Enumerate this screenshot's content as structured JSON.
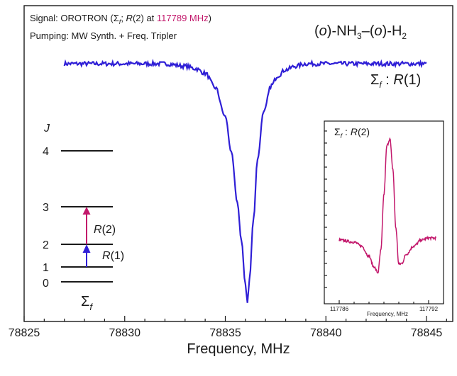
{
  "colors": {
    "main": "#2f1fd6",
    "inset": "#c2176b",
    "accent": "#c2176b",
    "arrow_r1": "#2f1fd6",
    "arrow_r2": "#c2176b"
  },
  "header": {
    "signal_prefix": "Signal: OROTRON (",
    "signal_sigma": "Σ",
    "signal_sub": "f",
    "signal_mid": "; ",
    "signal_R": "R",
    "signal_arg": "(2) at ",
    "signal_freq": "117789 MHz",
    "signal_close": ")",
    "pumping": "Pumping: MW Synth. + Freq. Tripler",
    "species_o1": "o",
    "species_nh": ")-NH",
    "species_3": "3",
    "species_dash": "–(",
    "species_o2": "o",
    "species_h": ")-H",
    "species_2": "2",
    "species_open": "(",
    "curve_label_sigma": "Σ",
    "curve_label_sub": "f",
    "curve_label_colon": " : ",
    "curve_label_R": "R",
    "curve_label_arg": "(1)"
  },
  "energy_diagram": {
    "J_label": "J",
    "levels": [
      "4",
      "3",
      "2",
      "1",
      "0"
    ],
    "r2_R": "R",
    "r2_arg": "(2)",
    "r1_R": "R",
    "r1_arg": "(1)",
    "sigma": "Σ",
    "sigma_sub": "f"
  },
  "inset": {
    "title_sigma": "Σ",
    "title_sub": "f",
    "title_colon": " : ",
    "title_R": "R",
    "title_arg": "(2)",
    "xlabel": "Frequency, MHz",
    "xticks": [
      "117786",
      "117792"
    ]
  },
  "chart_data": [
    {
      "type": "line",
      "xlabel": "Frequency, MHz",
      "ylabel": "",
      "xlim": [
        78825,
        78847
      ],
      "xticks": [
        "78825",
        "78830",
        "78835",
        "78840",
        "78845"
      ],
      "series": [
        {
          "name": "Σf : R(1)",
          "x": [
            78827.0,
            78828.0,
            78829.0,
            78830.0,
            78831.0,
            78832.0,
            78833.0,
            78833.5,
            78834.0,
            78834.5,
            78835.0,
            78835.3,
            78835.6,
            78835.8,
            78836.0,
            78836.1,
            78836.2,
            78836.4,
            78836.6,
            78836.9,
            78837.3,
            78837.6,
            78838.0,
            78838.5,
            78839.0,
            78840.0,
            78841.0,
            78842.0,
            78843.0,
            78844.0,
            78845.0
          ],
          "y": [
            1.0,
            1.0,
            1.0,
            1.0,
            1.0,
            1.0,
            0.99,
            0.98,
            0.96,
            0.9,
            0.78,
            0.63,
            0.42,
            0.26,
            0.08,
            0.0,
            0.1,
            0.35,
            0.6,
            0.8,
            0.91,
            0.95,
            0.975,
            0.99,
            1.0,
            1.0,
            1.0,
            1.0,
            1.0,
            1.0,
            1.0
          ]
        }
      ]
    },
    {
      "type": "line",
      "title": "Σf : R(2)",
      "xlabel": "Frequency, MHz",
      "ylabel": "",
      "xlim": [
        117785.0,
        117793.0
      ],
      "xticks": [
        "117786",
        "117792"
      ],
      "series": [
        {
          "name": "Σf : R(2)",
          "x": [
            117786.0,
            117787.0,
            117787.5,
            117788.0,
            117788.3,
            117788.6,
            117788.8,
            117789.0,
            117789.2,
            117789.4,
            117789.6,
            117789.8,
            117790.0,
            117790.2,
            117790.5,
            117791.0,
            117791.5,
            117792.0,
            117792.5
          ],
          "y": [
            0.0,
            -0.02,
            -0.06,
            -0.16,
            -0.26,
            -0.32,
            -0.1,
            0.45,
            0.93,
            1.0,
            0.7,
            0.12,
            -0.24,
            -0.23,
            -0.14,
            -0.06,
            0.0,
            0.02,
            0.02
          ]
        }
      ]
    }
  ]
}
